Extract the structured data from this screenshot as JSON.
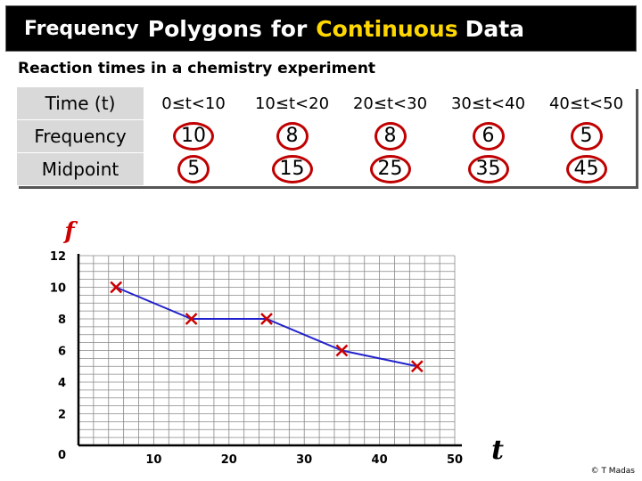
{
  "title": {
    "part1": "Frequency",
    "part2": "Polygons",
    "part3": "for",
    "part4": "Continuous",
    "part5": "Data"
  },
  "subtitle": "Reaction times in a chemistry experiment",
  "table": {
    "header_label": "Time (t)",
    "classes": [
      "0≤t<10",
      "10≤t<20",
      "20≤t<30",
      "30≤t<40",
      "40≤t<50"
    ],
    "frequency_label": "Frequency",
    "frequencies": [
      "10",
      "8",
      "8",
      "6",
      "5"
    ],
    "midpoint_label": "Midpoint",
    "midpoints": [
      "5",
      "15",
      "25",
      "35",
      "45"
    ]
  },
  "copyright": "© T Madas",
  "colors": {
    "title_bg": "#000000",
    "highlight": "#ffd700",
    "ring": "#c00000",
    "line": "#2222cc",
    "marker": "#cc0000"
  },
  "chart_data": {
    "type": "line",
    "xlabel": "t",
    "ylabel": "f",
    "xlim": [
      0,
      50
    ],
    "ylim": [
      0,
      12
    ],
    "xticks": [
      0,
      10,
      20,
      30,
      40,
      50
    ],
    "yticks": [
      2,
      4,
      6,
      8,
      10,
      12
    ],
    "xtick_labels": [
      "10",
      "20",
      "30",
      "40",
      "50"
    ],
    "ytick_labels": [
      "0",
      "2",
      "4",
      "6",
      "8",
      "10",
      "12"
    ],
    "grid": true,
    "series": [
      {
        "x": [
          5,
          15,
          25,
          35,
          45
        ],
        "y": [
          10,
          8,
          8,
          6,
          5
        ]
      }
    ]
  }
}
